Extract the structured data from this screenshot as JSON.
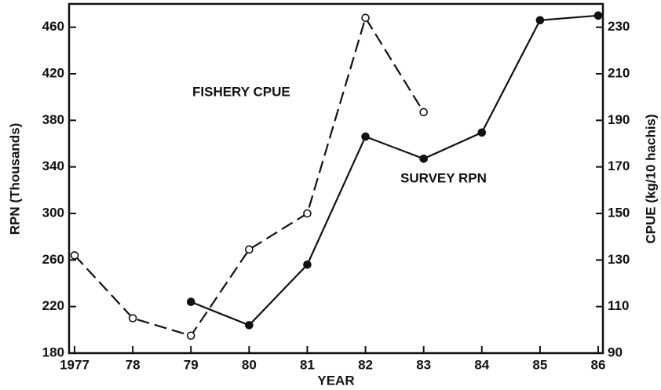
{
  "chart_data": {
    "type": "line",
    "x_label": "YEAR",
    "y_label": "RPN (Thousands)",
    "y2_label": "CPUE (kg/10 hachis)",
    "categories": [
      "1977",
      "78",
      "79",
      "80",
      "81",
      "82",
      "83",
      "84",
      "85",
      "86"
    ],
    "series": [
      {
        "name": "FISHERY CPUE",
        "color": "#111111",
        "axis": "y2",
        "dashed": true,
        "marker": "open",
        "values": [
          132,
          105,
          97.5,
          134.5,
          150,
          234,
          193.5,
          null,
          null,
          null
        ]
      },
      {
        "name": "SURVEY RPN",
        "color": "#111111",
        "axis": "y",
        "dashed": false,
        "marker": "filled",
        "values": [
          null,
          null,
          224,
          204,
          256,
          366,
          347,
          369.5,
          466,
          470
        ]
      }
    ],
    "ylim": [
      180,
      480
    ],
    "yticks": [
      180,
      220,
      260,
      300,
      340,
      380,
      420,
      460
    ],
    "y2lim": [
      90,
      240
    ],
    "y2ticks": [
      90,
      110,
      130,
      150,
      170,
      190,
      210,
      230
    ]
  }
}
